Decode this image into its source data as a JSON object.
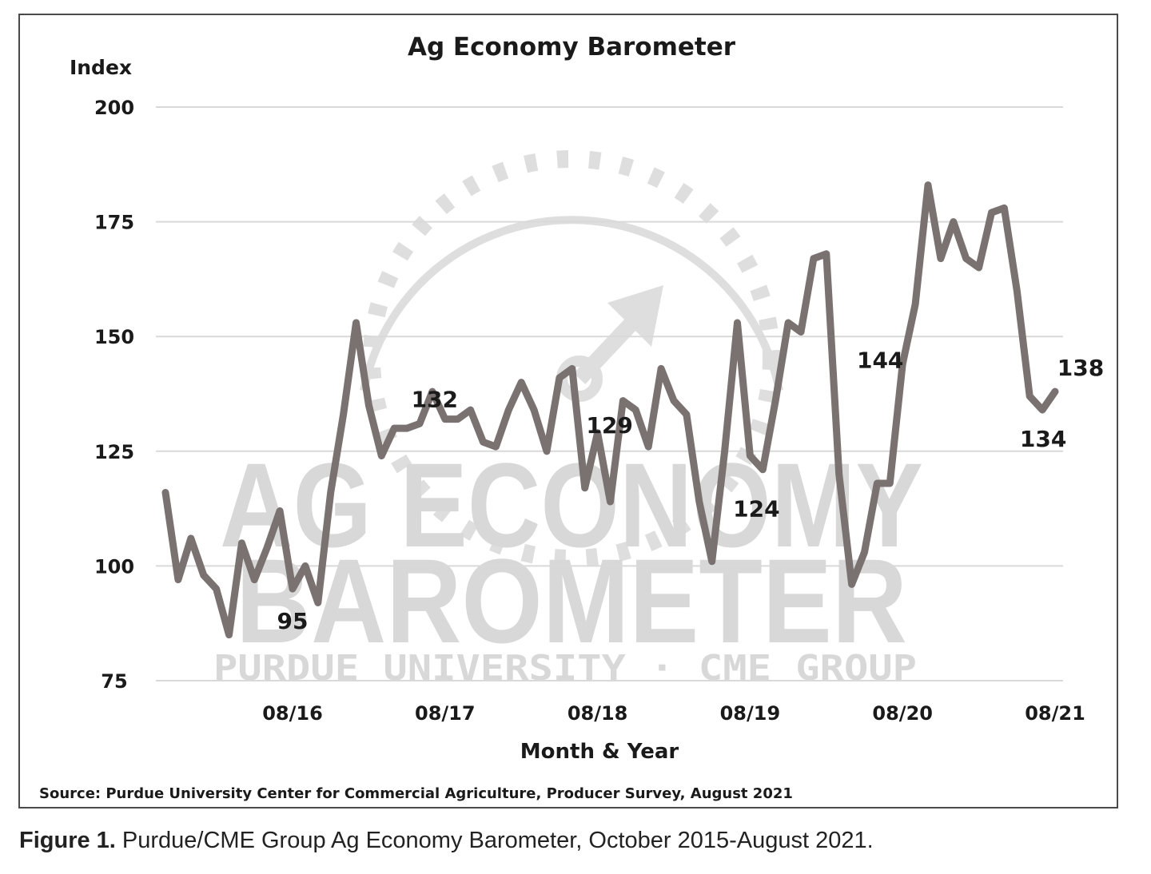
{
  "chart_data": {
    "type": "line",
    "title": "Ag Economy Barometer",
    "y_unit_label": "Index",
    "xlabel": "Month & Year",
    "ylim": [
      75,
      200
    ],
    "yticks": [
      "200",
      "175",
      "150",
      "125",
      "100",
      "75"
    ],
    "ytick_values": [
      200,
      175,
      150,
      125,
      100,
      75
    ],
    "xticks": [
      "08/16",
      "08/17",
      "08/18",
      "08/19",
      "08/20",
      "08/21"
    ],
    "xtick_index": [
      10,
      22,
      34,
      46,
      58,
      70
    ],
    "grid": true,
    "series": [
      {
        "color": "#7a7270",
        "x": [
          "10/15",
          "11/15",
          "12/15",
          "01/16",
          "02/16",
          "03/16",
          "04/16",
          "05/16",
          "06/16",
          "07/16",
          "08/16",
          "09/16",
          "10/16",
          "11/16",
          "12/16",
          "01/17",
          "02/17",
          "03/17",
          "04/17",
          "05/17",
          "06/17",
          "07/17",
          "08/17",
          "09/17",
          "10/17",
          "11/17",
          "12/17",
          "01/18",
          "02/18",
          "03/18",
          "04/18",
          "05/18",
          "06/18",
          "07/18",
          "08/18",
          "09/18",
          "10/18",
          "11/18",
          "12/18",
          "01/19",
          "02/19",
          "03/19",
          "04/19",
          "05/19",
          "06/19",
          "07/19",
          "08/19",
          "09/19",
          "10/19",
          "11/19",
          "12/19",
          "01/20",
          "02/20",
          "03/20",
          "04/20",
          "05/20",
          "06/20",
          "07/20",
          "08/20",
          "09/20",
          "10/20",
          "11/20",
          "12/20",
          "01/21",
          "02/21",
          "03/21",
          "04/21",
          "05/21",
          "06/21",
          "07/21",
          "08/21"
        ],
        "values": [
          116,
          97,
          106,
          98,
          95,
          85,
          105,
          97,
          104,
          112,
          95,
          100,
          92,
          116,
          133,
          153,
          135,
          124,
          130,
          130,
          131,
          138,
          132,
          132,
          134,
          127,
          126,
          134,
          140,
          134,
          125,
          141,
          143,
          117,
          129,
          114,
          136,
          134,
          126,
          143,
          136,
          133,
          114,
          101,
          125,
          153,
          124,
          121,
          136,
          153,
          151,
          167,
          168,
          120,
          96,
          103,
          118,
          118,
          144,
          157,
          183,
          167,
          175,
          167,
          165,
          177,
          178,
          160,
          137,
          134,
          138
        ]
      }
    ],
    "annotations": [
      {
        "text": "95",
        "index": 10
      },
      {
        "text": "132",
        "index": 22
      },
      {
        "text": "129",
        "index": 34
      },
      {
        "text": "124",
        "index": 46
      },
      {
        "text": "144",
        "index": 58
      },
      {
        "text": "138",
        "index": 70
      },
      {
        "text": "134",
        "index": 69
      }
    ],
    "source": "Source: Purdue University Center for Commercial Agriculture, Producer Survey, August 2021",
    "watermark": {
      "line1": "AG ECONOMY",
      "line2": "BAROMETER",
      "line3": "PURDUE UNIVERSITY  ·  CME GROUP"
    }
  },
  "figure_caption": {
    "label": "Figure 1.",
    "text": " Purdue/CME Group Ag Economy Barometer, October 2015-August 2021."
  }
}
